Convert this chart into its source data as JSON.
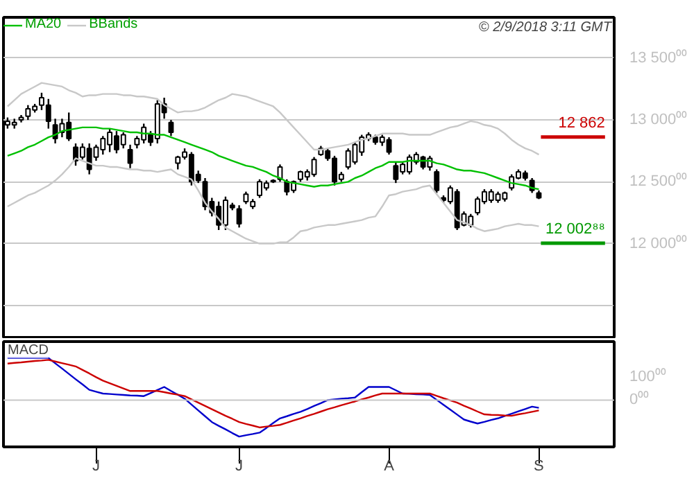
{
  "chart_data": [
    {
      "type": "candlestick",
      "categories": [
        null,
        null,
        null,
        null,
        null,
        null,
        null,
        null,
        null,
        null,
        null,
        null,
        null,
        null,
        null,
        null,
        null,
        null,
        null,
        null,
        null,
        null,
        null,
        null,
        null,
        null,
        null,
        null,
        null,
        null,
        null,
        null,
        null,
        null,
        null,
        null,
        null,
        null,
        null,
        null,
        null,
        null,
        null,
        null,
        null,
        null,
        null,
        null,
        null,
        null,
        null,
        null,
        null,
        null,
        null,
        null,
        null,
        null,
        null,
        null,
        null,
        null,
        null,
        null,
        null,
        null,
        null,
        null,
        null,
        null,
        null,
        null,
        null,
        null,
        null,
        null,
        null,
        null,
        null
      ],
      "ohlc": [
        [
          12960,
          13020,
          12930,
          12990
        ],
        [
          12960,
          13010,
          12930,
          12980
        ],
        [
          13000,
          13040,
          12980,
          13020
        ],
        [
          13030,
          13120,
          13000,
          13090
        ],
        [
          13080,
          13130,
          13060,
          13110
        ],
        [
          13120,
          13220,
          13080,
          13180
        ],
        [
          13120,
          13170,
          12930,
          12990
        ],
        [
          12960,
          13010,
          12810,
          12850
        ],
        [
          12900,
          13010,
          12860,
          12970
        ],
        [
          12980,
          13060,
          12830,
          12850
        ],
        [
          12780,
          12810,
          12630,
          12670
        ],
        [
          12700,
          12810,
          12680,
          12780
        ],
        [
          12770,
          12810,
          12560,
          12600
        ],
        [
          12700,
          12800,
          12670,
          12780
        ],
        [
          12760,
          12870,
          12720,
          12850
        ],
        [
          12800,
          12930,
          12740,
          12900
        ],
        [
          12870,
          12910,
          12730,
          12760
        ],
        [
          12800,
          12900,
          12770,
          12880
        ],
        [
          12760,
          12800,
          12610,
          12650
        ],
        [
          12800,
          12870,
          12770,
          12850
        ],
        [
          12840,
          12970,
          12810,
          12940
        ],
        [
          12880,
          12910,
          12790,
          12820
        ],
        [
          12850,
          13160,
          12810,
          13130
        ],
        [
          13130,
          13180,
          13010,
          13060
        ],
        [
          12980,
          13000,
          12870,
          12900
        ],
        [
          12650,
          12710,
          12600,
          12700
        ],
        [
          12700,
          12770,
          12680,
          12740
        ],
        [
          12720,
          12740,
          12470,
          12500
        ],
        [
          12560,
          12590,
          12490,
          12510
        ],
        [
          12500,
          12530,
          12270,
          12300
        ],
        [
          12340,
          12370,
          12220,
          12250
        ],
        [
          12300,
          12340,
          12110,
          12150
        ],
        [
          12150,
          12380,
          12110,
          12350
        ],
        [
          12310,
          12330,
          12270,
          12290
        ],
        [
          12280,
          12310,
          12130,
          12160
        ],
        [
          12340,
          12420,
          12320,
          12400
        ],
        [
          12300,
          12360,
          12280,
          12340
        ],
        [
          12390,
          12520,
          12370,
          12500
        ],
        [
          12450,
          12510,
          12430,
          12490
        ],
        [
          12500,
          12520,
          12490,
          12510
        ],
        [
          12520,
          12640,
          12500,
          12620
        ],
        [
          12500,
          12520,
          12390,
          12420
        ],
        [
          12430,
          12510,
          12410,
          12500
        ],
        [
          12520,
          12590,
          12500,
          12580
        ],
        [
          12540,
          12600,
          12510,
          12580
        ],
        [
          12560,
          12700,
          12540,
          12680
        ],
        [
          12720,
          12790,
          12710,
          12770
        ],
        [
          12750,
          12770,
          12670,
          12690
        ],
        [
          12690,
          12710,
          12470,
          12500
        ],
        [
          12520,
          12580,
          12500,
          12560
        ],
        [
          12620,
          12770,
          12600,
          12750
        ],
        [
          12660,
          12820,
          12640,
          12800
        ],
        [
          12740,
          12880,
          12710,
          12860
        ],
        [
          12850,
          12900,
          12830,
          12880
        ],
        [
          12860,
          12880,
          12800,
          12820
        ],
        [
          12820,
          12880,
          12790,
          12860
        ],
        [
          12840,
          12860,
          12720,
          12740
        ],
        [
          12630,
          12660,
          12490,
          12520
        ],
        [
          12580,
          12660,
          12560,
          12640
        ],
        [
          12580,
          12720,
          12560,
          12700
        ],
        [
          12660,
          12740,
          12640,
          12720
        ],
        [
          12700,
          12710,
          12600,
          12620
        ],
        [
          12620,
          12710,
          12590,
          12690
        ],
        [
          12580,
          12600,
          12410,
          12430
        ],
        [
          12370,
          12390,
          12330,
          12350
        ],
        [
          12340,
          12470,
          12320,
          12450
        ],
        [
          12420,
          12440,
          12110,
          12130
        ],
        [
          12150,
          12260,
          12140,
          12240
        ],
        [
          12150,
          12240,
          12130,
          12220
        ],
        [
          12250,
          12380,
          12230,
          12360
        ],
        [
          12340,
          12440,
          12320,
          12420
        ],
        [
          12350,
          12440,
          12330,
          12420
        ],
        [
          12350,
          12420,
          12330,
          12400
        ],
        [
          12360,
          12420,
          12340,
          12410
        ],
        [
          12450,
          12560,
          12430,
          12540
        ],
        [
          12530,
          12600,
          12520,
          12580
        ],
        [
          12570,
          12590,
          12510,
          12530
        ],
        [
          12510,
          12530,
          12410,
          12430
        ],
        [
          12410,
          12430,
          12360,
          12370
        ]
      ],
      "series": [
        {
          "type": "line",
          "name": "MA20",
          "color": "#00c000",
          "values": [
            12710,
            12730,
            12750,
            12780,
            12800,
            12830,
            12860,
            12880,
            12910,
            12920,
            12930,
            12940,
            12940,
            12940,
            12930,
            12930,
            12920,
            12910,
            12900,
            12900,
            12890,
            12890,
            12880,
            12880,
            12860,
            12840,
            12820,
            12800,
            12780,
            12760,
            12740,
            12710,
            12690,
            12670,
            12650,
            12630,
            12620,
            12600,
            12580,
            12550,
            12530,
            12500,
            12490,
            12480,
            12470,
            12460,
            12470,
            12470,
            12480,
            12490,
            12500,
            12530,
            12550,
            12580,
            12610,
            12630,
            12660,
            12660,
            12660,
            12670,
            12670,
            12670,
            12670,
            12650,
            12640,
            12620,
            12600,
            12590,
            12590,
            12580,
            12570,
            12550,
            12530,
            12510,
            12490,
            12480,
            12470,
            12450,
            12440
          ]
        },
        {
          "type": "line",
          "name": "BBands",
          "color": "#c8c8c8",
          "values": [
            13110,
            13160,
            13210,
            13240,
            13270,
            13300,
            13290,
            13280,
            13270,
            13240,
            13220,
            13190,
            13200,
            13200,
            13210,
            13210,
            13210,
            13200,
            13200,
            13190,
            13190,
            13180,
            13170,
            13120,
            13090,
            13060,
            13070,
            13070,
            13080,
            13100,
            13130,
            13160,
            13180,
            13210,
            13200,
            13190,
            13170,
            13150,
            13130,
            13110,
            13060,
            13000,
            12940,
            12880,
            12820,
            12760,
            12760,
            12770,
            12780,
            12790,
            12800,
            12820,
            12840,
            12850,
            12870,
            12890,
            12890,
            12890,
            12890,
            12880,
            12880,
            12880,
            12880,
            12900,
            12920,
            12940,
            12950,
            12970,
            12990,
            12980,
            12960,
            12950,
            12930,
            12890,
            12840,
            12800,
            12770,
            12750,
            12720
          ]
        },
        {
          "type": "line",
          "color": "#c8c8c8",
          "values": [
            12300,
            12330,
            12360,
            12390,
            12410,
            12440,
            12470,
            12510,
            12560,
            12620,
            12690,
            12670,
            12650,
            12630,
            12630,
            12620,
            12620,
            12610,
            12600,
            12600,
            12590,
            12590,
            12580,
            12590,
            12600,
            12560,
            12540,
            12520,
            12430,
            12330,
            12260,
            12200,
            12130,
            12100,
            12070,
            12040,
            12020,
            12000,
            12000,
            12000,
            12010,
            12010,
            12050,
            12100,
            12110,
            12130,
            12140,
            12150,
            12150,
            12160,
            12170,
            12180,
            12190,
            12210,
            12220,
            12300,
            12390,
            12400,
            12420,
            12430,
            12440,
            12460,
            12470,
            12400,
            12330,
            12260,
            12190,
            12170,
            12150,
            12120,
            12100,
            12110,
            12120,
            12140,
            12150,
            12160,
            12150,
            12150,
            12140
          ]
        }
      ],
      "ylim": [
        11230,
        13830
      ],
      "yticks": [
        {
          "value": 11500,
          "label": null
        },
        {
          "value": 12000,
          "label": "12 000⁰⁰"
        },
        {
          "value": 12500,
          "label": "12 500⁰⁰"
        },
        {
          "value": 13000,
          "label": "13 000⁰⁰"
        },
        {
          "value": 13500,
          "label": "13 500⁰⁰"
        }
      ],
      "tick_labels": "y",
      "grid": "y",
      "legend": "top left",
      "ref_lines": [
        {
          "axis": "y",
          "value": 12862,
          "label": "12 862",
          "color": "#cc0000"
        },
        {
          "axis": "y",
          "value": 12002.88,
          "label": "12 002⁸⁸",
          "color": "#009900"
        }
      ],
      "annotations": [
        "© 2/9/2018 3:11 GMT"
      ]
    },
    {
      "type": "line",
      "categories": [
        null,
        null,
        null,
        null,
        null,
        null,
        null,
        null,
        null,
        null,
        null,
        null,
        null,
        "J",
        null,
        null,
        null,
        null,
        null,
        null,
        null,
        null,
        null,
        null,
        null,
        null,
        null,
        null,
        null,
        null,
        null,
        null,
        null,
        null,
        "J",
        null,
        null,
        null,
        null,
        null,
        null,
        null,
        null,
        null,
        null,
        null,
        null,
        null,
        null,
        null,
        null,
        null,
        null,
        null,
        null,
        null,
        "A",
        null,
        null,
        null,
        null,
        null,
        null,
        null,
        null,
        null,
        null,
        null,
        null,
        null,
        null,
        null,
        null,
        null,
        null,
        null,
        null,
        null,
        "S"
      ],
      "series": [
        {
          "color": "#0000cc",
          "values": [
            180,
            180,
            180,
            180,
            180,
            180,
            180,
            157,
            135,
            112,
            89,
            67,
            44,
            36,
            28,
            26,
            24,
            22,
            20,
            19,
            17,
            30,
            43,
            56,
            39,
            23,
            6,
            -19,
            -44,
            -69,
            -94,
            -110,
            -125,
            -141,
            -156,
            -150,
            -145,
            -139,
            -119,
            -98,
            -78,
            -69,
            -59,
            -50,
            -38,
            -25,
            -13,
            0,
            3,
            6,
            8,
            11,
            34,
            56,
            56,
            56,
            56,
            42,
            28,
            27,
            25,
            24,
            22,
            1,
            -20,
            -41,
            -62,
            -83,
            -92,
            -100,
            -93,
            -85,
            -78,
            -68,
            -58,
            -48,
            -38,
            -28,
            -33
          ]
        },
        {
          "color": "#cc0000",
          "values": [
            156,
            159,
            161,
            164,
            167,
            169,
            172,
            165,
            158,
            151,
            144,
            129,
            114,
            98,
            83,
            72,
            61,
            50,
            39,
            39,
            39,
            39,
            39,
            34,
            28,
            23,
            17,
            3,
            -11,
            -25,
            -39,
            -53,
            -67,
            -80,
            -94,
            -102,
            -109,
            -117,
            -113,
            -110,
            -106,
            -97,
            -87,
            -78,
            -68,
            -59,
            -49,
            -39,
            -31,
            -22,
            -14,
            -6,
            3,
            11,
            20,
            28,
            28,
            28,
            28,
            28,
            28,
            28,
            28,
            18,
            8,
            -1,
            -11,
            -24,
            -36,
            -49,
            -61,
            -63,
            -64,
            -66,
            -67,
            -61,
            -56,
            -50,
            -44
          ]
        }
      ],
      "ylim": [
        -200,
        250
      ],
      "yticks": [
        {
          "value": 0,
          "label": "0⁰⁰"
        },
        {
          "value": 100,
          "label": "100⁰⁰"
        }
      ],
      "ref_lines": [
        {
          "axis": "y",
          "value": 0,
          "color": "#c8c8c8"
        }
      ],
      "annotations": [
        "MACD"
      ]
    }
  ]
}
